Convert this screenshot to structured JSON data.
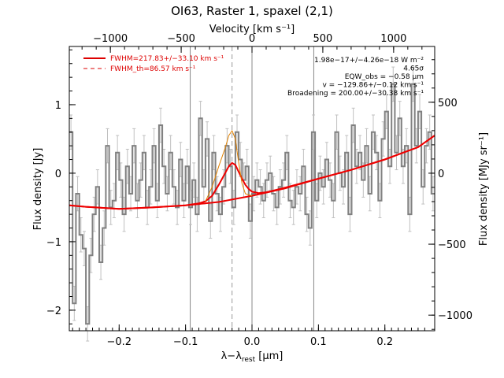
{
  "chart_data": {
    "type": "line",
    "title": "OI63, Raster 1, spaxel (2,1)",
    "top_axis": {
      "label": "Velocity [km s⁻¹]",
      "ticks": [
        -1000,
        -500,
        0,
        500,
        1000
      ],
      "tick_labels": [
        "−1000",
        "−500",
        "0",
        "500",
        "1000"
      ],
      "range": [
        -1290,
        1290
      ]
    },
    "x_axis": {
      "label": "λ−λ_rest [μm]",
      "label_main": "λ−λ",
      "label_sub": "rest",
      "label_unit": " [μm]",
      "ticks": [
        -0.2,
        -0.1,
        0.0,
        0.1,
        0.2
      ],
      "tick_labels": [
        "−0.2",
        "−0.1",
        "0.0",
        "0.1",
        "0.2"
      ],
      "range": [
        -0.275,
        0.275
      ]
    },
    "y_axis_left": {
      "label": "Flux density [Jy]",
      "ticks": [
        -2,
        -1,
        0,
        1
      ],
      "tick_labels": [
        "−2",
        "−1",
        "0",
        "1"
      ],
      "range": [
        -2.3,
        1.85
      ]
    },
    "y_axis_right": {
      "label": "Flux density [MJy sr⁻¹]",
      "ticks": [
        -1000,
        -500,
        0,
        500
      ],
      "tick_labels": [
        "−1000",
        "−500",
        "0",
        "500"
      ],
      "range": [
        -1110,
        893
      ]
    },
    "legend": {
      "position": "top-left",
      "entries": [
        {
          "label": "FWHM=217.83+/−33.10 km s⁻¹",
          "style": "solid",
          "color": "#dd0000"
        },
        {
          "label": "FWHM_th=86.57 km s⁻¹",
          "style": "dashed",
          "color": "#dd0000"
        }
      ]
    },
    "annotations": [
      "1.98e−17+/−4.26e−18 W m⁻²",
      "4.65σ",
      "EQW_obs = −0.58 μm",
      "v = −129.86+/−0.12 km s⁻¹",
      "Broadening = 200.00+/−30.38 km s⁻¹"
    ],
    "vertical_lines": [
      {
        "x": -0.093,
        "style": "solid",
        "color": "#888888"
      },
      {
        "x": 0.0,
        "style": "solid",
        "color": "#888888"
      },
      {
        "x": 0.093,
        "style": "solid",
        "color": "#888888"
      },
      {
        "x": -0.03,
        "style": "dashed",
        "color": "#999999"
      }
    ],
    "grid": false,
    "series": [
      {
        "type": "step",
        "color": "#808080",
        "x": [
          -0.275,
          -0.27,
          -0.265,
          -0.26,
          -0.255,
          -0.25,
          -0.245,
          -0.24,
          -0.235,
          -0.23,
          -0.225,
          -0.22,
          -0.215,
          -0.21,
          -0.205,
          -0.2,
          -0.195,
          -0.19,
          -0.185,
          -0.18,
          -0.175,
          -0.17,
          -0.165,
          -0.16,
          -0.155,
          -0.15,
          -0.145,
          -0.14,
          -0.135,
          -0.13,
          -0.125,
          -0.12,
          -0.115,
          -0.11,
          -0.105,
          -0.1,
          -0.095,
          -0.09,
          -0.085,
          -0.08,
          -0.075,
          -0.07,
          -0.065,
          -0.06,
          -0.055,
          -0.05,
          -0.045,
          -0.04,
          -0.035,
          -0.03,
          -0.025,
          -0.02,
          -0.015,
          -0.01,
          -0.005,
          0.0,
          0.005,
          0.01,
          0.015,
          0.02,
          0.025,
          0.03,
          0.035,
          0.04,
          0.045,
          0.05,
          0.055,
          0.06,
          0.065,
          0.07,
          0.075,
          0.08,
          0.085,
          0.09,
          0.095,
          0.1,
          0.105,
          0.11,
          0.115,
          0.12,
          0.125,
          0.13,
          0.135,
          0.14,
          0.145,
          0.15,
          0.155,
          0.16,
          0.165,
          0.17,
          0.175,
          0.18,
          0.185,
          0.19,
          0.195,
          0.2,
          0.205,
          0.21,
          0.215,
          0.22,
          0.225,
          0.23,
          0.235,
          0.24,
          0.245,
          0.25,
          0.255,
          0.26,
          0.265,
          0.27
        ],
        "y": [
          0.6,
          -1.9,
          -0.3,
          -0.9,
          -1.1,
          -2.2,
          -1.2,
          -0.6,
          -0.2,
          -1.3,
          -0.8,
          0.4,
          -0.5,
          -0.4,
          0.3,
          -0.1,
          -0.6,
          0.1,
          -0.3,
          0.4,
          -0.4,
          -0.1,
          0.3,
          -0.5,
          -0.2,
          0.4,
          -0.4,
          0.7,
          0.1,
          -0.3,
          0.3,
          -0.2,
          -0.5,
          0.2,
          -0.4,
          0.1,
          -0.5,
          -0.1,
          -0.6,
          0.8,
          -0.2,
          0.5,
          -0.7,
          0.3,
          -0.3,
          -0.6,
          -0.2,
          0.4,
          0.1,
          -0.5,
          0.6,
          0.2,
          -0.1,
          0.1,
          -0.7,
          -0.3,
          -0.1,
          -0.2,
          -0.4,
          -0.1,
          0.0,
          -0.3,
          -0.5,
          -0.2,
          -0.1,
          0.3,
          -0.4,
          -0.5,
          -0.2,
          -0.3,
          0.1,
          -0.6,
          -0.8,
          0.6,
          -0.4,
          0.0,
          -0.2,
          0.2,
          -0.1,
          -0.4,
          0.6,
          0.0,
          -0.2,
          0.3,
          -0.6,
          0.7,
          0.1,
          0.3,
          -0.1,
          0.4,
          -0.3,
          0.6,
          0.3,
          -0.4,
          0.5,
          0.9,
          0.1,
          1.3,
          0.3,
          0.8,
          0.1,
          0.4,
          -0.6,
          1.3,
          0.4,
          0.9,
          -0.2,
          0.4,
          0.6,
          -0.3
        ],
        "error": 0.25
      },
      {
        "type": "line",
        "name": "baseline",
        "color": "#ee0000",
        "x": [
          -0.275,
          -0.25,
          -0.2,
          -0.15,
          -0.1,
          -0.05,
          0.0,
          0.05,
          0.1,
          0.15,
          0.2,
          0.25,
          0.275
        ],
        "y": [
          -0.47,
          -0.49,
          -0.52,
          -0.5,
          -0.47,
          -0.42,
          -0.33,
          -0.22,
          -0.08,
          0.05,
          0.2,
          0.38,
          0.55
        ]
      },
      {
        "type": "line",
        "name": "fit",
        "color": "#ee0000",
        "x": [
          -0.275,
          -0.25,
          -0.2,
          -0.15,
          -0.1,
          -0.08,
          -0.07,
          -0.06,
          -0.05,
          -0.04,
          -0.035,
          -0.03,
          -0.025,
          -0.02,
          -0.015,
          -0.01,
          -0.005,
          0.0,
          0.01,
          0.02,
          0.03,
          0.05,
          0.1,
          0.15,
          0.2,
          0.25,
          0.275
        ],
        "y": [
          -0.47,
          -0.49,
          -0.52,
          -0.5,
          -0.47,
          -0.44,
          -0.41,
          -0.33,
          -0.17,
          0.01,
          0.1,
          0.15,
          0.12,
          0.02,
          -0.08,
          -0.17,
          -0.23,
          -0.27,
          -0.29,
          -0.28,
          -0.26,
          -0.21,
          -0.08,
          0.05,
          0.2,
          0.38,
          0.55
        ]
      },
      {
        "type": "line",
        "name": "gaussian",
        "color": "#e08000",
        "x": [
          -0.07,
          -0.06,
          -0.05,
          -0.04,
          -0.035,
          -0.03,
          -0.025,
          -0.02,
          -0.015,
          -0.01,
          0.0
        ],
        "y": [
          -0.41,
          -0.2,
          0.1,
          0.38,
          0.55,
          0.62,
          0.5,
          0.15,
          -0.15,
          -0.3,
          -0.33
        ]
      }
    ]
  }
}
